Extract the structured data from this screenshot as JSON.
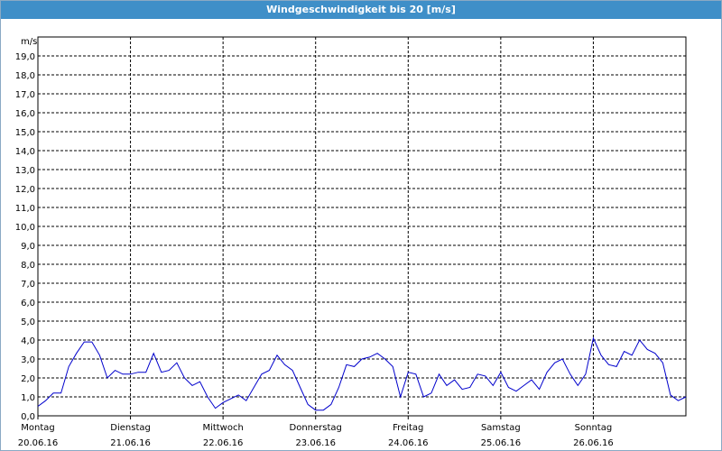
{
  "chart_data": {
    "type": "line",
    "title": "Windgeschwindigkeit bis 20 [m/s]",
    "y_label": "m/s",
    "color": "#0000cc",
    "grid": true,
    "xlim": [
      0,
      168
    ],
    "xticks": [
      {
        "value": 0,
        "label": "Montag",
        "date": "20.06.16"
      },
      {
        "value": 24,
        "label": "Dienstag",
        "date": "21.06.16"
      },
      {
        "value": 48,
        "label": "Mittwoch",
        "date": "22.06.16"
      },
      {
        "value": 72,
        "label": "Donnerstag",
        "date": "23.06.16"
      },
      {
        "value": 96,
        "label": "Freitag",
        "date": "24.06.16"
      },
      {
        "value": 120,
        "label": "Samstag",
        "date": "25.06.16"
      },
      {
        "value": 144,
        "label": "Sonntag",
        "date": "26.06.16"
      }
    ],
    "ylim": [
      0,
      20
    ],
    "yticks": [
      {
        "value": 0,
        "label": "0,0"
      },
      {
        "value": 1,
        "label": "1,0"
      },
      {
        "value": 2,
        "label": "2,0"
      },
      {
        "value": 3,
        "label": "3,0"
      },
      {
        "value": 4,
        "label": "4,0"
      },
      {
        "value": 5,
        "label": "5,0"
      },
      {
        "value": 6,
        "label": "6,0"
      },
      {
        "value": 7,
        "label": "7,0"
      },
      {
        "value": 8,
        "label": "8,0"
      },
      {
        "value": 9,
        "label": "9,0"
      },
      {
        "value": 10,
        "label": "10,0"
      },
      {
        "value": 11,
        "label": "11,0"
      },
      {
        "value": 12,
        "label": "12,0"
      },
      {
        "value": 13,
        "label": "13,0"
      },
      {
        "value": 14,
        "label": "14,0"
      },
      {
        "value": 15,
        "label": "15,0"
      },
      {
        "value": 16,
        "label": "16,0"
      },
      {
        "value": 17,
        "label": "17,0"
      },
      {
        "value": 18,
        "label": "18,0"
      },
      {
        "value": 19,
        "label": "19,0"
      }
    ],
    "x": [
      0,
      2,
      4,
      6,
      8,
      10,
      12,
      14,
      16,
      18,
      20,
      22,
      24,
      26,
      28,
      30,
      32,
      34,
      36,
      38,
      40,
      42,
      44,
      46,
      48,
      50,
      52,
      54,
      56,
      58,
      60,
      62,
      64,
      66,
      68,
      70,
      72,
      74,
      76,
      78,
      80,
      82,
      84,
      86,
      88,
      90,
      92,
      94,
      96,
      98,
      100,
      102,
      104,
      106,
      108,
      110,
      112,
      114,
      116,
      118,
      120,
      122,
      124,
      126,
      128,
      130,
      132,
      134,
      136,
      138,
      140,
      142,
      144,
      146,
      148,
      150,
      152,
      154,
      156,
      158,
      160,
      162,
      164,
      166,
      168
    ],
    "values": [
      0.5,
      0.8,
      1.2,
      1.2,
      2.6,
      3.3,
      3.9,
      3.9,
      3.2,
      2.0,
      2.4,
      2.2,
      2.2,
      2.3,
      2.3,
      3.3,
      2.3,
      2.4,
      2.8,
      2.0,
      1.6,
      1.8,
      1.0,
      0.4,
      0.7,
      0.9,
      1.1,
      0.8,
      1.5,
      2.2,
      2.4,
      3.2,
      2.7,
      2.4,
      1.5,
      0.6,
      0.3,
      0.3,
      0.6,
      1.5,
      2.7,
      2.6,
      3.0,
      3.1,
      3.3,
      3.0,
      2.6,
      1.0,
      2.3,
      2.2,
      1.0,
      1.2,
      2.2,
      1.6,
      1.9,
      1.4,
      1.5,
      2.2,
      2.1,
      1.6,
      2.3,
      1.5,
      1.3,
      1.6,
      1.9,
      1.4,
      2.3,
      2.8,
      3.0,
      2.2,
      1.6,
      2.2,
      4.1,
      3.2,
      2.7,
      2.6,
      3.4,
      3.2,
      4.0,
      3.5,
      3.3,
      2.8,
      1.1,
      0.8,
      1.0
    ]
  }
}
